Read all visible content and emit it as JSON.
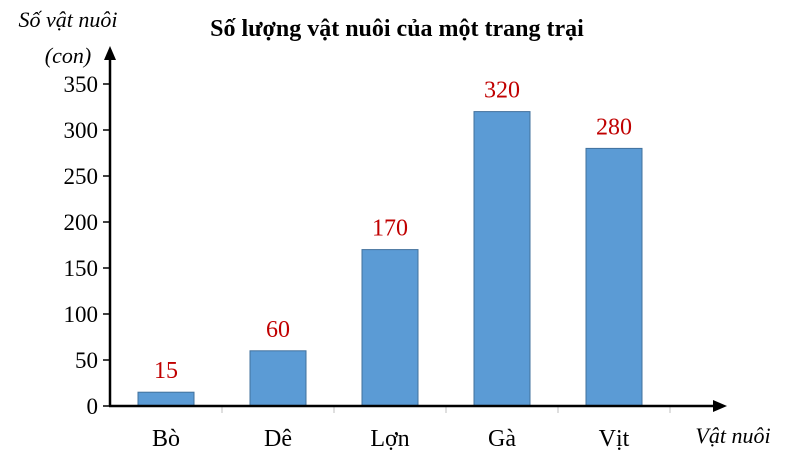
{
  "chart_data": {
    "type": "bar",
    "title": "Số lượng vật nuôi của một trang trại",
    "ylabel_line1": "Số vật nuôi",
    "ylabel_line2": "(con)",
    "xlabel": "Vật nuôi",
    "categories": [
      "Bò",
      "Dê",
      "Lợn",
      "Gà",
      "Vịt"
    ],
    "values": [
      15,
      60,
      170,
      320,
      280
    ],
    "yticks": [
      0,
      50,
      100,
      150,
      200,
      250,
      300,
      350
    ],
    "ylim": [
      0,
      350
    ],
    "grid": false,
    "legend": "none",
    "colors": {
      "bar_fill": "#5b9bd5",
      "bar_stroke": "#41719c",
      "data_label": "#c00000",
      "axis": "#000000",
      "tick_mark": "#bfbfbf"
    }
  }
}
